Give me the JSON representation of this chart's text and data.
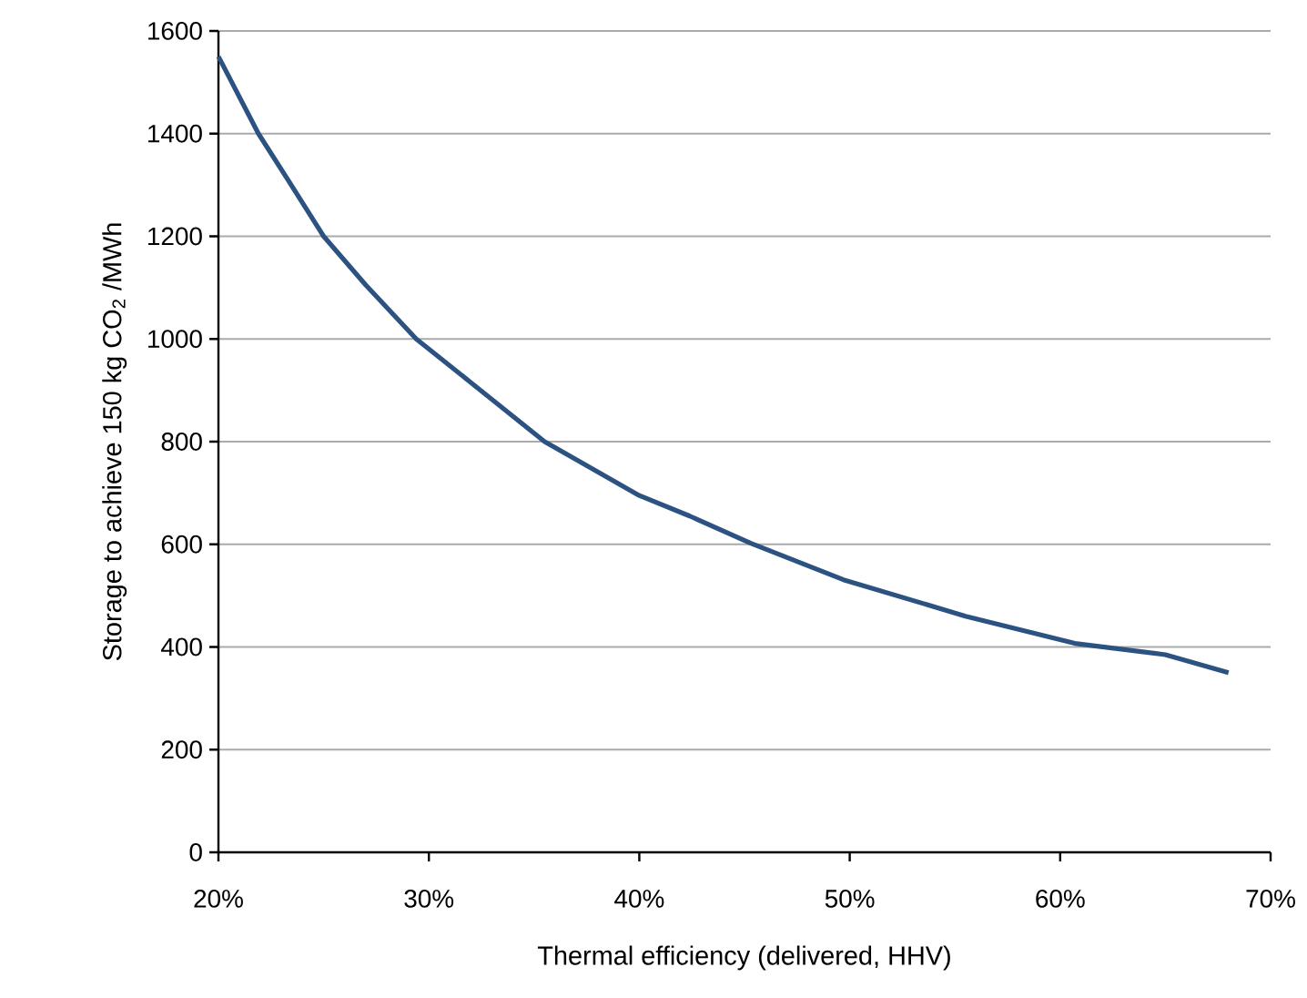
{
  "chart_data": {
    "type": "line",
    "xlabel": "Thermal efficiency (delivered, HHV)",
    "ylabel": "Storage  to achieve 150 kg CO$_{2}$ /MWh",
    "series": [
      {
        "color": "#2c5282",
        "x": [
          20,
          21.9,
          23.3,
          25,
          27,
          29.4,
          32,
          35.5,
          40,
          42.4,
          45.3,
          49.7,
          55.5,
          60.7,
          65,
          68
        ],
        "values": [
          1550,
          1400,
          1310,
          1200,
          1105,
          1000,
          915,
          800,
          695,
          655,
          602,
          531,
          460,
          407,
          385,
          350
        ]
      }
    ],
    "xlim": [
      20,
      70
    ],
    "ylim": [
      0,
      1600
    ],
    "xticks": [
      {
        "value": 20,
        "label": "20%"
      },
      {
        "value": 30,
        "label": "30%"
      },
      {
        "value": 40,
        "label": "40%"
      },
      {
        "value": 50,
        "label": "50%"
      },
      {
        "value": 60,
        "label": "60%"
      },
      {
        "value": 70,
        "label": "70%"
      }
    ],
    "yticks": [
      0,
      200,
      400,
      600,
      800,
      1000,
      1200,
      1400,
      1600
    ],
    "grid": "y",
    "marker": "none",
    "line_style": "solid"
  }
}
